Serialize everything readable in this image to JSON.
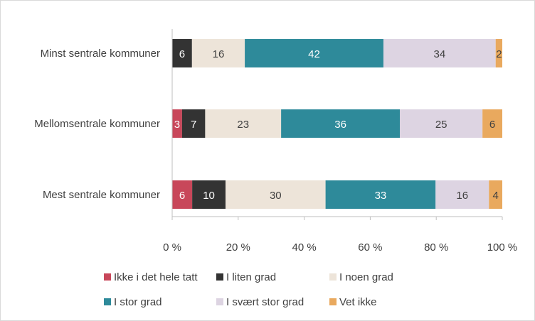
{
  "chart_data": {
    "type": "bar",
    "orientation": "horizontal",
    "stacked": "percent",
    "categories": [
      "Minst sentrale kommuner",
      "Mellomsentrale kommuner",
      "Mest sentrale kommuner"
    ],
    "series": [
      {
        "name": "Ikke i det hele tatt",
        "values": [
          0,
          3,
          6
        ],
        "color": "#c8475a"
      },
      {
        "name": "I liten grad",
        "values": [
          6,
          7,
          10
        ],
        "color": "#333333"
      },
      {
        "name": "I noen grad",
        "values": [
          16,
          23,
          30
        ],
        "color": "#ede4d9"
      },
      {
        "name": "I stor grad",
        "values": [
          42,
          36,
          33
        ],
        "color": "#2e8a9a"
      },
      {
        "name": "I svært stor grad",
        "values": [
          34,
          25,
          16
        ],
        "color": "#ddd4e2"
      },
      {
        "name": "Vet ikke",
        "values": [
          2,
          6,
          4
        ],
        "color": "#e9a95e"
      }
    ],
    "label_colors": [
      "#ffffff",
      "#ffffff",
      "#404040",
      "#ffffff",
      "#404040",
      "#404040"
    ],
    "xlim": [
      0,
      100
    ],
    "x_ticks": [
      "0 %",
      "20 %",
      "40 %",
      "60 %",
      "80 %",
      "100 %"
    ],
    "grid": false,
    "legend": "bottom",
    "title": "",
    "xlabel": "",
    "ylabel": ""
  }
}
